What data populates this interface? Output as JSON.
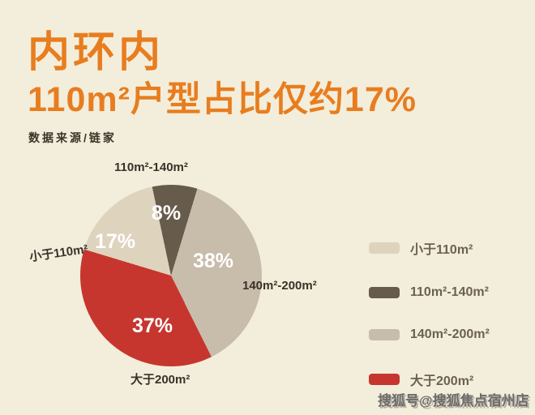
{
  "header": {
    "title_line1": "内环内",
    "title_line2": "110m²户型占比仅约17%",
    "source": "数据来源/链家"
  },
  "watermark": "搜狐号@搜狐焦点宿州店",
  "colors": {
    "background": "#f3eedb",
    "title_orange": "#e87d1f",
    "callout_text": "#3a3128",
    "legend_text": "#6b6054"
  },
  "chart_data": {
    "type": "pie",
    "title": "内环内110m²户型占比仅约17%",
    "source": "链家",
    "start_angle_deg": -12,
    "unit": "%",
    "slices": [
      {
        "label": "110m²-140m²",
        "value": 8,
        "display": "8%",
        "color": "#675b4c"
      },
      {
        "label": "140m²-200m²",
        "value": 38,
        "display": "38%",
        "color": "#c8bcab"
      },
      {
        "label": "大于200m²",
        "value": 37,
        "display": "37%",
        "color": "#c6362f"
      },
      {
        "label": "小于110m²",
        "value": 17,
        "display": "17%",
        "color": "#ded3bd"
      }
    ],
    "legend_position": "right",
    "legend": [
      {
        "label": "小于110m²",
        "color": "#ded3bd"
      },
      {
        "label": "110m²-140m²",
        "color": "#675b4c"
      },
      {
        "label": "140m²-200m²",
        "color": "#c8bcab"
      },
      {
        "label": "大于200m²",
        "color": "#c6362f"
      }
    ]
  }
}
